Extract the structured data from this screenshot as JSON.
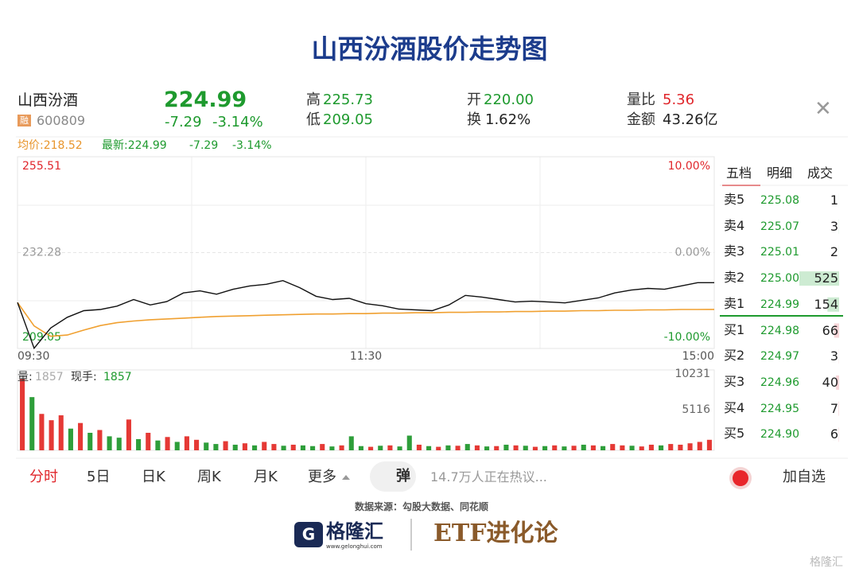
{
  "title": "山西汾酒股价走势图",
  "header": {
    "name": "山西汾酒",
    "badge": "融",
    "code": "600809",
    "price": "224.99",
    "change": "-7.29",
    "change_pct": "-3.14%",
    "high_label": "高",
    "high": "225.73",
    "low_label": "低",
    "low": "209.05",
    "open_label": "开",
    "open": "220.00",
    "turnover_label": "换",
    "turnover": "1.62%",
    "ratio_label": "量比",
    "ratio": "5.36",
    "amount_label": "金额",
    "amount": "43.26亿"
  },
  "summary": {
    "avg": "均价:218.52",
    "latest": "最新:224.99",
    "change": "-7.29",
    "change_pct": "-3.14%"
  },
  "chart_data": [
    {
      "type": "line",
      "ylim": [
        209.05,
        255.51
      ],
      "yticks": [
        209.05,
        232.28,
        255.51
      ],
      "y2lim": [
        -10,
        10
      ],
      "y2ticks": [
        {
          "value": -10,
          "label": "-10.00%"
        },
        {
          "value": 0,
          "label": "0.00%"
        },
        {
          "value": 10,
          "label": "10.00%"
        }
      ],
      "time_labels": [
        "09:30",
        "11:30",
        "15:00"
      ],
      "series": [
        {
          "name": "最新",
          "color": "#111111",
          "values": [
            220.2,
            209.1,
            214.0,
            216.6,
            218.2,
            218.5,
            219.3,
            220.9,
            219.6,
            220.4,
            222.5,
            223.0,
            222.2,
            223.4,
            224.2,
            224.6,
            225.5,
            223.8,
            221.7,
            220.9,
            221.2,
            219.9,
            219.4,
            218.6,
            218.4,
            218.2,
            219.6,
            221.9,
            221.5,
            220.9,
            220.3,
            220.5,
            220.3,
            220.1,
            220.7,
            221.3,
            222.5,
            223.2,
            223.6,
            223.4,
            224.2,
            225.0,
            224.99
          ]
        },
        {
          "name": "均价",
          "color": "#f0a030",
          "values": [
            220.2,
            214.5,
            212.0,
            212.3,
            213.5,
            214.6,
            215.3,
            215.7,
            216.0,
            216.2,
            216.4,
            216.6,
            216.8,
            216.9,
            217.0,
            217.1,
            217.2,
            217.3,
            217.4,
            217.4,
            217.5,
            217.5,
            217.6,
            217.6,
            217.7,
            217.7,
            217.8,
            217.8,
            217.9,
            217.9,
            218.0,
            218.0,
            218.1,
            218.1,
            218.2,
            218.2,
            218.3,
            218.3,
            218.4,
            218.4,
            218.5,
            218.5,
            218.52
          ]
        }
      ]
    },
    {
      "type": "bar",
      "volume_label": "量:",
      "volume_value": "1857",
      "hand_label": "现手:",
      "hand_value": "1857",
      "ylim": [
        0,
        10231
      ],
      "yticks": [
        5116,
        10231
      ],
      "values": [
        10231,
        7600,
        5200,
        4300,
        5000,
        3100,
        3900,
        2500,
        2900,
        2000,
        1800,
        4400,
        1600,
        2500,
        1400,
        1900,
        1200,
        2000,
        1500,
        1100,
        900,
        1300,
        800,
        1000,
        700,
        1200,
        900,
        650,
        800,
        700,
        600,
        900,
        550,
        700,
        2000,
        600,
        500,
        650,
        700,
        550,
        2100,
        800,
        600,
        500,
        700,
        650,
        900,
        700,
        550,
        600,
        800,
        700,
        650,
        500,
        600,
        700,
        550,
        650,
        800,
        700,
        600,
        900,
        700,
        650,
        550,
        800,
        700,
        900,
        800,
        1000,
        1200,
        1500
      ],
      "colors": [
        "#e53935",
        "#2e9e3a",
        "#e53935",
        "#e53935",
        "#e53935",
        "#2e9e3a",
        "#e53935",
        "#2e9e3a",
        "#e53935",
        "#2e9e3a",
        "#2e9e3a",
        "#e53935",
        "#2e9e3a",
        "#e53935",
        "#2e9e3a",
        "#e53935",
        "#2e9e3a",
        "#e53935",
        "#e53935",
        "#2e9e3a",
        "#2e9e3a",
        "#e53935",
        "#2e9e3a",
        "#e53935",
        "#2e9e3a",
        "#e53935",
        "#e53935",
        "#2e9e3a",
        "#e53935",
        "#2e9e3a",
        "#2e9e3a",
        "#e53935",
        "#2e9e3a",
        "#e53935",
        "#2e9e3a",
        "#2e9e3a",
        "#e53935",
        "#2e9e3a",
        "#e53935",
        "#2e9e3a",
        "#2e9e3a",
        "#e53935",
        "#2e9e3a",
        "#e53935",
        "#2e9e3a",
        "#e53935",
        "#2e9e3a",
        "#e53935",
        "#2e9e3a",
        "#e53935",
        "#2e9e3a",
        "#e53935",
        "#2e9e3a",
        "#e53935",
        "#2e9e3a",
        "#e53935",
        "#2e9e3a",
        "#e53935",
        "#2e9e3a",
        "#e53935",
        "#2e9e3a",
        "#e53935",
        "#e53935",
        "#2e9e3a",
        "#e53935",
        "#e53935",
        "#2e9e3a",
        "#e53935",
        "#e53935",
        "#e53935",
        "#e53935",
        "#e53935"
      ]
    }
  ],
  "order_book": {
    "tabs": [
      "五档",
      "明细",
      "成交"
    ],
    "asks": [
      {
        "label": "卖5",
        "price": "225.08",
        "volume": 1
      },
      {
        "label": "卖4",
        "price": "225.07",
        "volume": 3
      },
      {
        "label": "卖3",
        "price": "225.01",
        "volume": 2
      },
      {
        "label": "卖2",
        "price": "225.00",
        "volume": 525
      },
      {
        "label": "卖1",
        "price": "224.99",
        "volume": 154
      }
    ],
    "bids": [
      {
        "label": "买1",
        "price": "224.98",
        "volume": 66
      },
      {
        "label": "买2",
        "price": "224.97",
        "volume": 3
      },
      {
        "label": "买3",
        "price": "224.96",
        "volume": 40
      },
      {
        "label": "买4",
        "price": "224.95",
        "volume": 7
      },
      {
        "label": "买5",
        "price": "224.90",
        "volume": 6
      }
    ]
  },
  "toolbar": {
    "tabs": [
      "分时",
      "5日",
      "日K",
      "周K",
      "月K",
      "更多"
    ],
    "danmaku": "弹",
    "discussion": "14.7万人正在热议...",
    "add": "加自选"
  },
  "footer": {
    "source": "数据来源：勾股大数据、同花顺",
    "logo": "格隆汇",
    "site": "www.gelonghui.com",
    "brand": "ETF进化论",
    "watermark": "格隆汇"
  }
}
